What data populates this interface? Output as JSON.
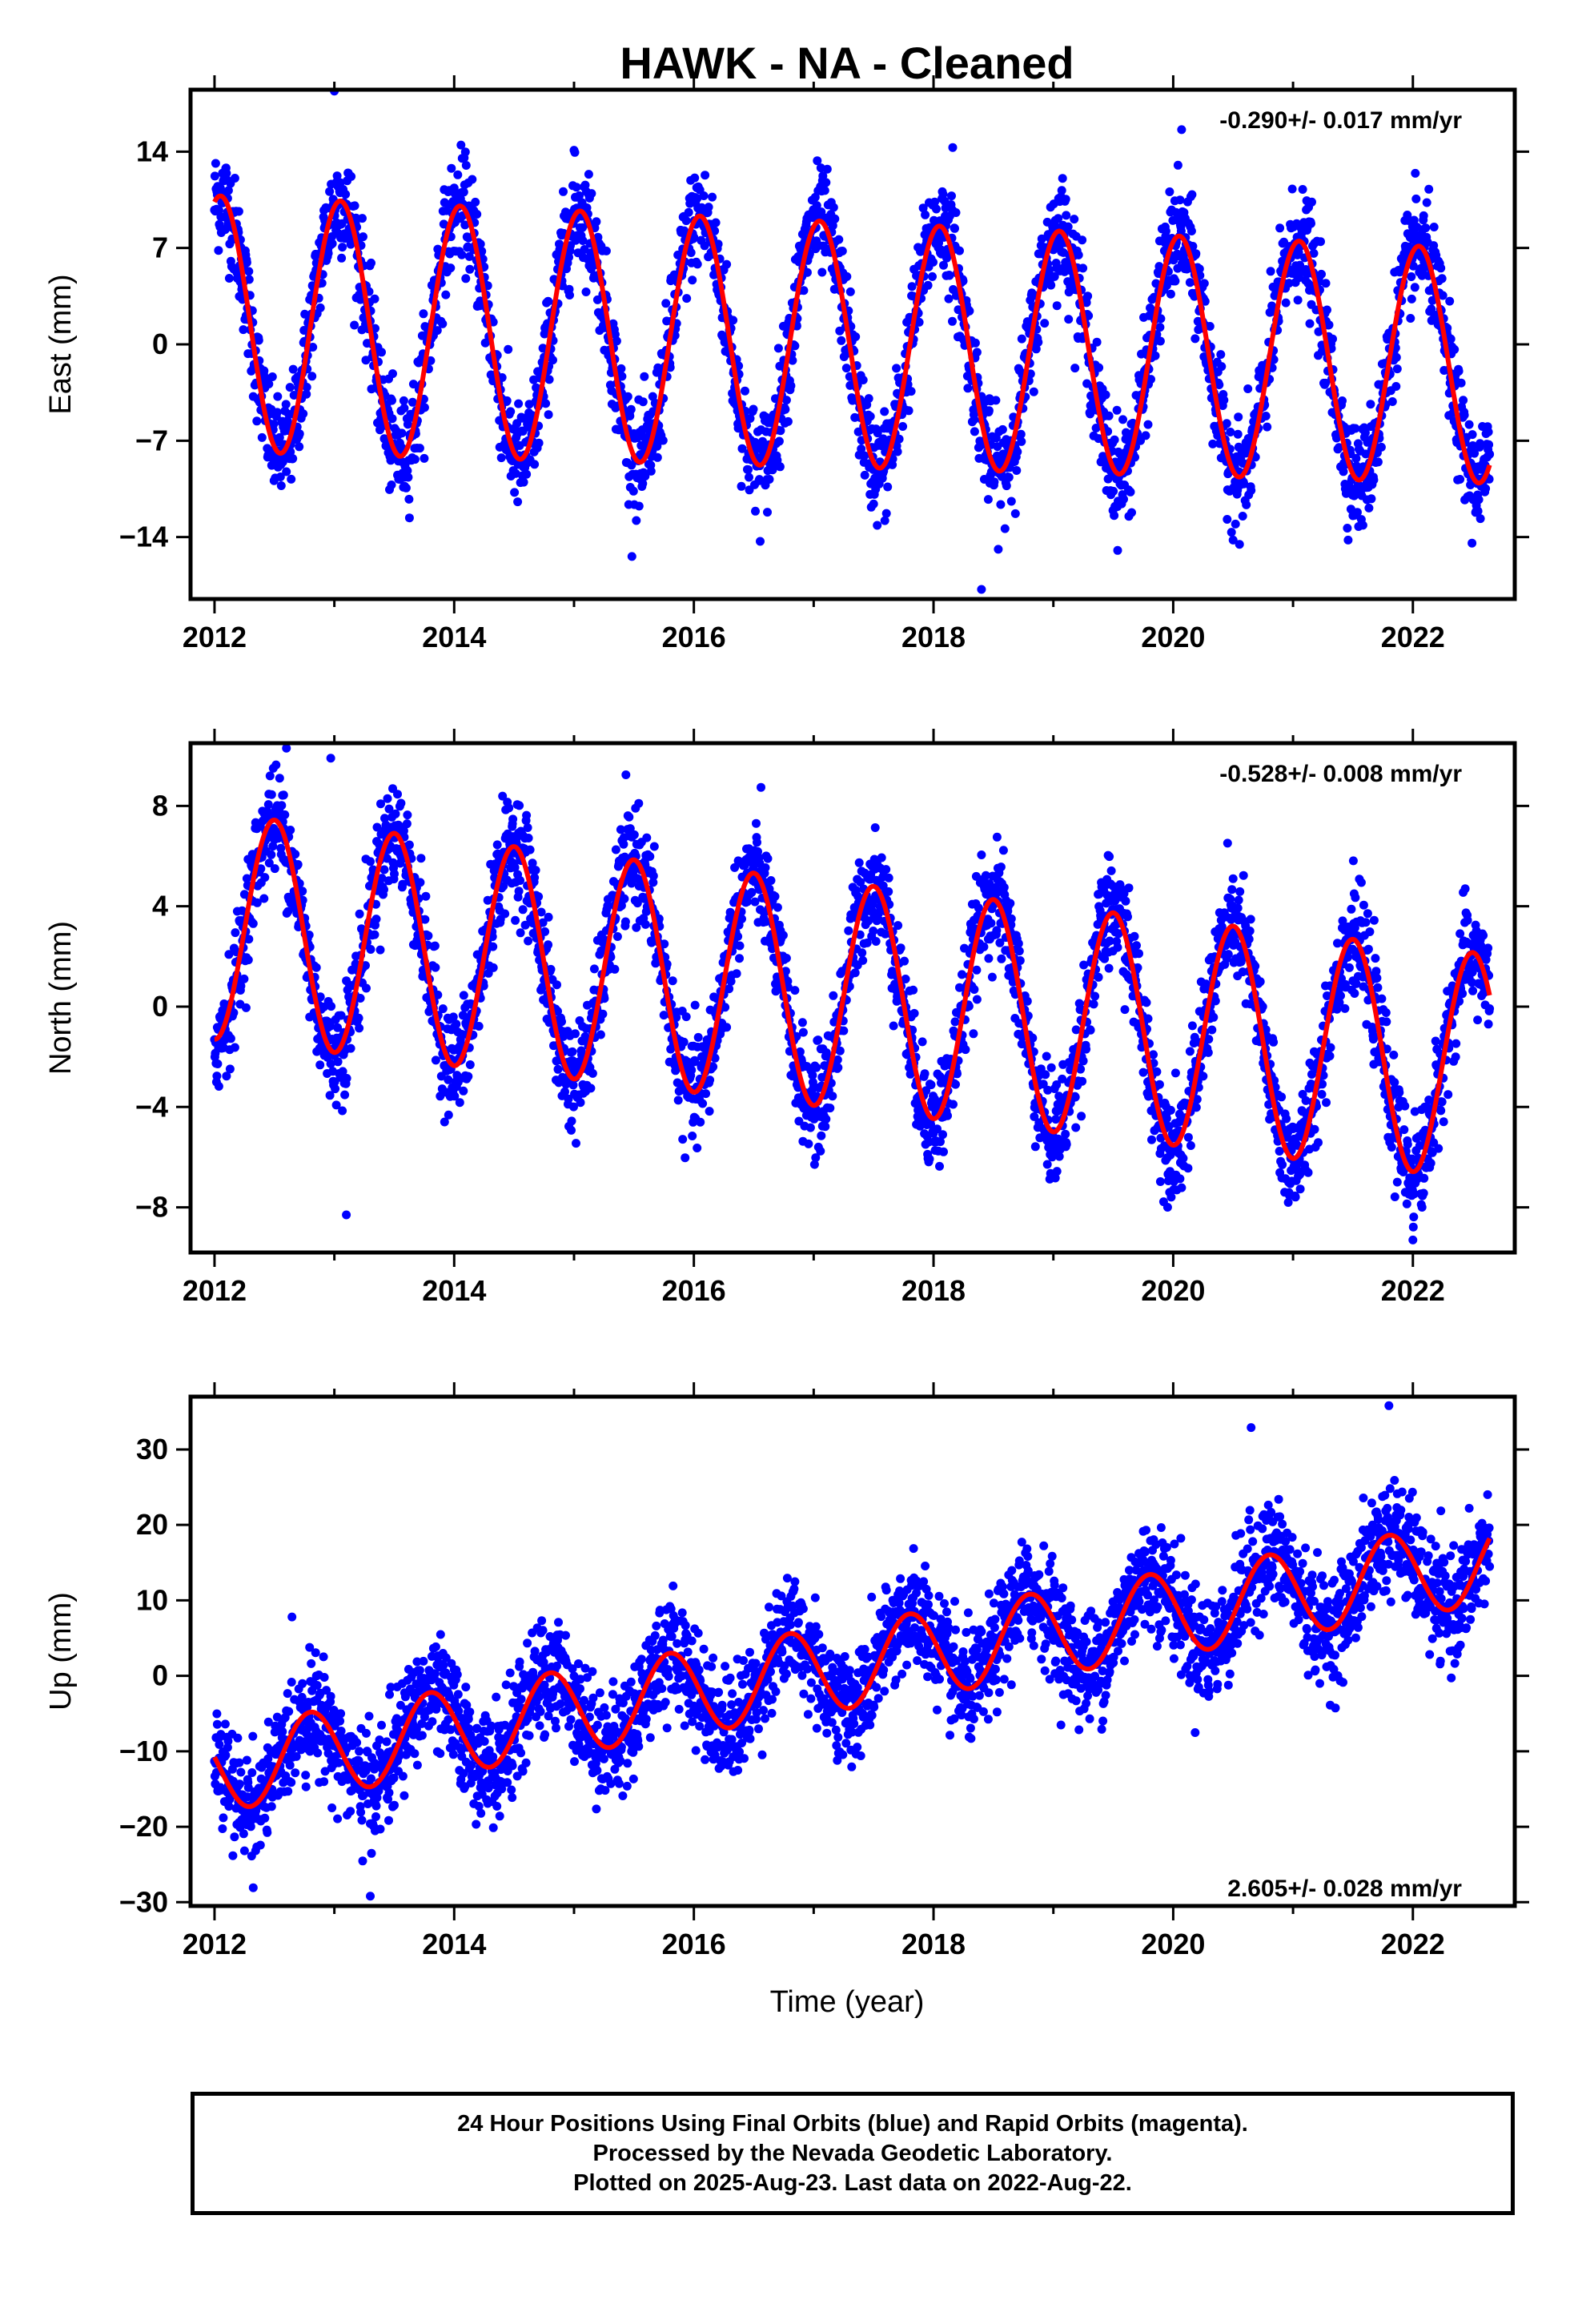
{
  "title": "HAWK  - NA - Cleaned",
  "colors": {
    "points": "#0000ff",
    "fit": "#ff0000",
    "frame": "#000000"
  },
  "xlabel": "Time (year)",
  "footer": {
    "line1": "24 Hour Positions Using Final Orbits (blue) and Rapid Orbits (magenta).",
    "line2": "Processed by the Nevada Geodetic Laboratory.",
    "line3": "Plotted on 2025-Aug-23. Last data on 2022-Aug-22."
  },
  "chart_data": [
    {
      "type": "scatter",
      "ylabel": "East (mm)",
      "rate": "-0.290+/- 0.017 mm/yr",
      "xlim": [
        2011.8,
        2022.85
      ],
      "ylim": [
        -18.5,
        18.5
      ],
      "xticks": [
        2012,
        2014,
        2016,
        2018,
        2020,
        2022
      ],
      "yticks": [
        -14,
        -7,
        0,
        7,
        14
      ],
      "series": [
        {
          "values": "daily positions 2012.0–2022.64 (blue points)"
        }
      ],
      "fit": {
        "offset": 1.5,
        "trend": -0.29,
        "annual_amp": 9.3,
        "annual_peak": 2012.05,
        "amp_growth": 0.08
      },
      "outliers": [
        [
          2013.0,
          18.4
        ],
        [
          2020.07,
          15.6
        ],
        [
          2018.4,
          -17.8
        ],
        [
          2015.0,
          14.1
        ],
        [
          2018.16,
          14.3
        ]
      ]
    },
    {
      "type": "scatter",
      "ylabel": "North (mm)",
      "rate": "-0.528+/- 0.008 mm/yr",
      "xlim": [
        2011.8,
        2022.85
      ],
      "ylim": [
        -9.8,
        10.5
      ],
      "xticks": [
        2012,
        2014,
        2016,
        2018,
        2020,
        2022
      ],
      "yticks": [
        -8,
        -4,
        0,
        4,
        8
      ],
      "series": [
        {
          "values": "daily positions 2012.0–2022.64 (blue points)"
        }
      ],
      "fit": {
        "offset": 3.2,
        "trend": -0.528,
        "annual_amp": 4.5,
        "annual_peak": 2012.5,
        "amp_growth": 0.0
      },
      "outliers": [
        [
          2012.6,
          10.3
        ],
        [
          2012.97,
          9.9
        ],
        [
          2013.1,
          -8.3
        ],
        [
          2022.0,
          -9.3
        ]
      ]
    },
    {
      "type": "scatter",
      "ylabel": "Up (mm)",
      "rate": "2.605+/- 0.028 mm/yr",
      "xlim": [
        2011.8,
        2022.85
      ],
      "ylim": [
        -30.5,
        37
      ],
      "xticks": [
        2012,
        2014,
        2016,
        2018,
        2020,
        2022
      ],
      "yticks": [
        -30,
        -20,
        -10,
        0,
        10,
        20,
        30
      ],
      "series": [
        {
          "values": "daily positions 2012.0–2022.64 (blue points)"
        }
      ],
      "fit": {
        "offset": -12.5,
        "trend": 2.605,
        "annual_amp": 5.6,
        "annual_peak": 2012.8,
        "amp_growth": 0.0
      },
      "outliers": [
        [
          2021.8,
          35.8
        ],
        [
          2020.65,
          32.9
        ],
        [
          2013.3,
          -29.2
        ]
      ]
    }
  ]
}
